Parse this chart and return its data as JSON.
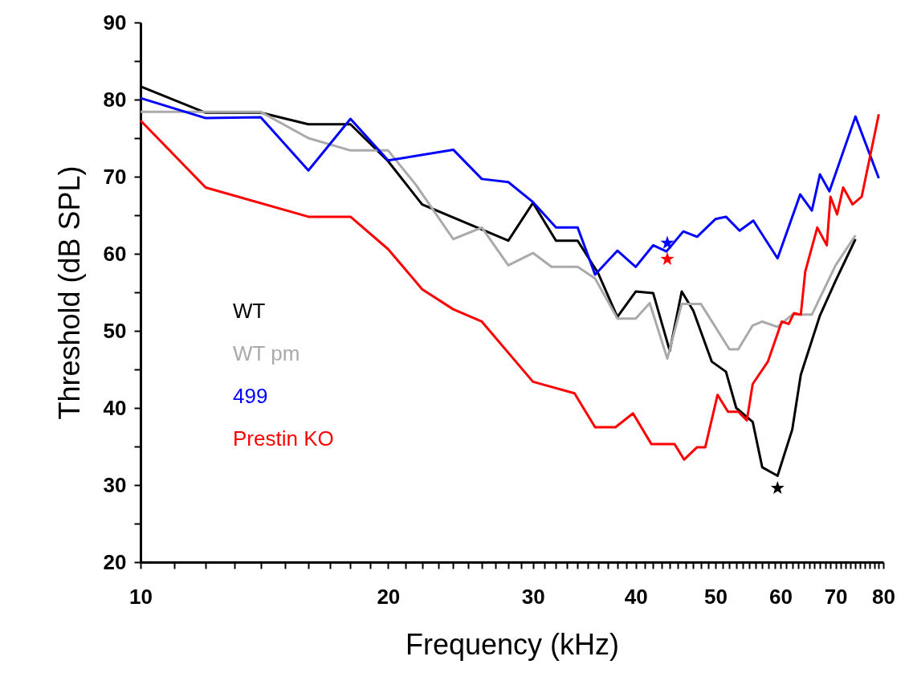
{
  "chart_data": {
    "type": "line",
    "xlabel": "Frequency (kHz)",
    "ylabel": "Threshold (dB SPL)",
    "log": "x",
    "grid": false,
    "legend": "left",
    "line_style": "solid",
    "marker": "none",
    "xlim": [
      10,
      80
    ],
    "ylim": [
      20,
      90
    ],
    "xticks": [
      10,
      {
        "value": 11,
        "label": null
      },
      {
        "value": 12,
        "label": null
      },
      {
        "value": 13,
        "label": null
      },
      {
        "value": 14,
        "label": null
      },
      {
        "value": 15,
        "label": null
      },
      {
        "value": 16,
        "label": null
      },
      {
        "value": 17,
        "label": null
      },
      {
        "value": 18,
        "label": null
      },
      {
        "value": 19,
        "label": null
      },
      20,
      {
        "value": 21,
        "label": null
      },
      {
        "value": 22,
        "label": null
      },
      {
        "value": 23,
        "label": null
      },
      {
        "value": 24,
        "label": null
      },
      {
        "value": 25,
        "label": null
      },
      {
        "value": 26,
        "label": null
      },
      {
        "value": 27,
        "label": null
      },
      {
        "value": 28,
        "label": null
      },
      {
        "value": 29,
        "label": null
      },
      30,
      {
        "value": 31,
        "label": null
      },
      {
        "value": 32,
        "label": null
      },
      {
        "value": 33,
        "label": null
      },
      {
        "value": 34,
        "label": null
      },
      {
        "value": 35,
        "label": null
      },
      {
        "value": 36,
        "label": null
      },
      {
        "value": 37,
        "label": null
      },
      {
        "value": 38,
        "label": null
      },
      {
        "value": 39,
        "label": null
      },
      40,
      {
        "value": 41,
        "label": null
      },
      {
        "value": 42,
        "label": null
      },
      {
        "value": 43,
        "label": null
      },
      {
        "value": 44,
        "label": null
      },
      {
        "value": 45,
        "label": null
      },
      {
        "value": 46,
        "label": null
      },
      {
        "value": 47,
        "label": null
      },
      {
        "value": 48,
        "label": null
      },
      {
        "value": 49,
        "label": null
      },
      50,
      {
        "value": 51,
        "label": null
      },
      {
        "value": 52,
        "label": null
      },
      {
        "value": 53,
        "label": null
      },
      {
        "value": 54,
        "label": null
      },
      {
        "value": 55,
        "label": null
      },
      {
        "value": 56,
        "label": null
      },
      {
        "value": 57,
        "label": null
      },
      {
        "value": 58,
        "label": null
      },
      {
        "value": 59,
        "label": null
      },
      60,
      {
        "value": 61,
        "label": null
      },
      {
        "value": 62,
        "label": null
      },
      {
        "value": 63,
        "label": null
      },
      {
        "value": 64,
        "label": null
      },
      {
        "value": 65,
        "label": null
      },
      {
        "value": 66,
        "label": null
      },
      {
        "value": 67,
        "label": null
      },
      {
        "value": 68,
        "label": null
      },
      {
        "value": 69,
        "label": null
      },
      70,
      {
        "value": 71,
        "label": null
      },
      {
        "value": 72,
        "label": null
      },
      {
        "value": 73,
        "label": null
      },
      {
        "value": 74,
        "label": null
      },
      {
        "value": 75,
        "label": null
      },
      {
        "value": 76,
        "label": null
      },
      {
        "value": 77,
        "label": null
      },
      {
        "value": 78,
        "label": null
      },
      {
        "value": 79,
        "label": null
      },
      80
    ],
    "yticks": [
      20,
      {
        "value": 25,
        "label": null
      },
      30,
      {
        "value": 35,
        "label": null
      },
      40,
      {
        "value": 45,
        "label": null
      },
      50,
      {
        "value": 55,
        "label": null
      },
      60,
      {
        "value": 65,
        "label": null
      },
      70,
      {
        "value": 75,
        "label": null
      },
      80,
      {
        "value": 85,
        "label": null
      },
      90
    ],
    "series": [
      {
        "name": "WT",
        "color": "#000000",
        "x": [
          10,
          12,
          14,
          16,
          18,
          20,
          22,
          28,
          30,
          32,
          34,
          36,
          38,
          40,
          42,
          44,
          45.5,
          47,
          49.5,
          51.5,
          53,
          55.5,
          57,
          59.5,
          62,
          63.5,
          67,
          70,
          74
        ],
        "values": [
          81.7,
          78.3,
          78.3,
          76.8,
          76.8,
          72,
          66.4,
          61.7,
          66.6,
          61.7,
          61.7,
          57.5,
          51.8,
          55.1,
          54.9,
          47.4,
          55.1,
          52.6,
          46,
          44.7,
          40,
          38.2,
          32.3,
          31.2,
          37.2,
          44.3,
          52,
          56.5,
          61.9
        ]
      },
      {
        "name": "WT pm",
        "color": "#aaaaaa",
        "x": [
          10,
          14,
          16,
          18,
          20,
          21.6,
          24,
          26,
          28,
          30,
          31.6,
          34,
          35.7,
          38,
          40,
          41.6,
          43.7,
          45.5,
          48,
          52,
          53.3,
          55.5,
          57,
          59.5,
          62,
          65.5,
          70,
          74
        ],
        "values": [
          78.4,
          78.4,
          75,
          73.4,
          73.4,
          69,
          61.9,
          63.4,
          58.5,
          60.1,
          58.3,
          58.3,
          56.8,
          51.6,
          51.6,
          53.6,
          46.4,
          53.5,
          53.5,
          47.6,
          47.6,
          50.7,
          51.2,
          50.5,
          52.1,
          52.1,
          58.5,
          62.4
        ]
      },
      {
        "name": "499",
        "color": "#0000ff",
        "x": [
          10,
          12,
          14,
          16,
          18,
          20,
          24,
          26,
          28,
          30,
          32,
          34,
          35.7,
          38,
          40,
          42,
          43.6,
          45.7,
          47.5,
          50,
          51.5,
          53.5,
          55.6,
          59.5,
          63.4,
          65.5,
          67,
          68.8,
          74,
          79
        ],
        "values": [
          80.2,
          77.6,
          77.7,
          70.8,
          77.5,
          72.1,
          73.5,
          69.7,
          69.3,
          66.7,
          63.4,
          63.4,
          57.3,
          60.4,
          58.3,
          61.1,
          60.3,
          62.9,
          62.2,
          64.5,
          64.8,
          63,
          64.3,
          59.4,
          67.7,
          65.6,
          70.3,
          68.1,
          77.8,
          69.8
        ]
      },
      {
        "name": "Prestin KO",
        "color": "#ff0000",
        "x": [
          10,
          12,
          16,
          18,
          20,
          22,
          24,
          26,
          30,
          33.7,
          35.7,
          37.8,
          39.7,
          41.8,
          44.6,
          45.8,
          47.5,
          48.6,
          50.3,
          51.8,
          53.3,
          54.6,
          55.5,
          57.9,
          60.2,
          61.4,
          62.3,
          63.5,
          64.3,
          66.5,
          68.3,
          69,
          70.3,
          71.5,
          73.4,
          75.3,
          79
        ],
        "values": [
          77.3,
          68.6,
          64.8,
          64.8,
          60.6,
          55.4,
          52.8,
          51.2,
          43.4,
          41.9,
          37.5,
          37.5,
          39.3,
          35.3,
          35.3,
          33.3,
          34.9,
          34.9,
          41.7,
          39.5,
          39.5,
          38.4,
          43.1,
          46,
          51.2,
          50.9,
          52.3,
          52.1,
          57.7,
          63.4,
          61.1,
          67.4,
          65.1,
          68.6,
          66.4,
          67.4,
          78.1
        ]
      },
      {
        "type": "scatter",
        "marker": "star",
        "color": "#0000ff",
        "x": [
          43.7
        ],
        "values": [
          61.4
        ]
      },
      {
        "type": "scatter",
        "marker": "star",
        "color": "#ff0000",
        "x": [
          43.7
        ],
        "values": [
          59.3
        ]
      },
      {
        "type": "scatter",
        "marker": "star",
        "color": "#000000",
        "x": [
          59.5
        ],
        "values": [
          29.6
        ]
      }
    ]
  }
}
